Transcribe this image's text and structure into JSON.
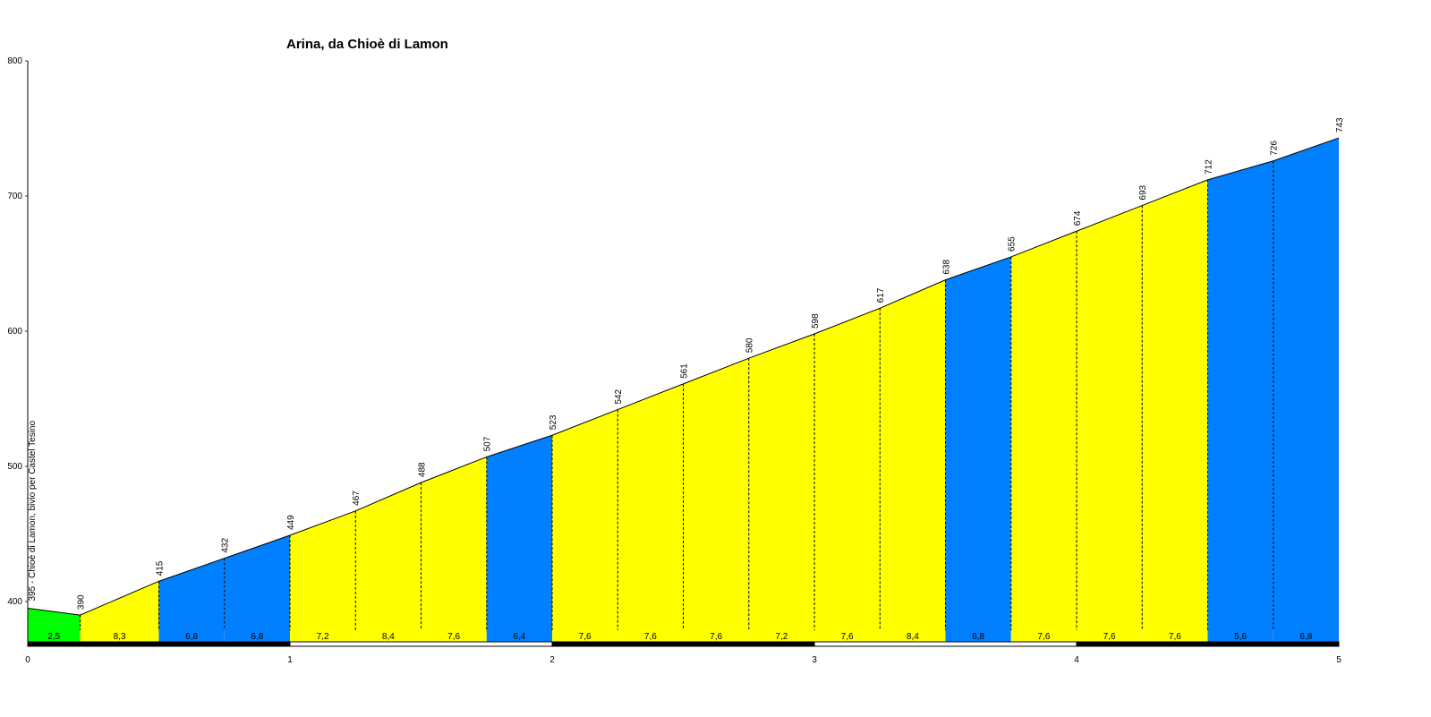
{
  "chart_data": {
    "type": "area",
    "title": "Arina, da Chioè di Lamon",
    "xlabel": "",
    "ylabel": "",
    "xlim": [
      0,
      5
    ],
    "ylim": [
      370,
      800
    ],
    "x_ticks": [
      "0",
      "1",
      "2",
      "3",
      "4",
      "5"
    ],
    "y_ticks": [
      "400",
      "500",
      "600",
      "700",
      "800"
    ],
    "start_label": "395 - Chioè di Lamon, bivio per Castel Tesino",
    "colors": {
      "green": "#00ff00",
      "yellow": "#ffff00",
      "blue": "#0080ff"
    },
    "points": [
      {
        "x": 0.0,
        "y": 395,
        "label": ""
      },
      {
        "x": 0.2,
        "y": 390,
        "label": "390"
      },
      {
        "x": 0.5,
        "y": 415,
        "label": "415"
      },
      {
        "x": 0.75,
        "y": 432,
        "label": "432"
      },
      {
        "x": 1.0,
        "y": 449,
        "label": "449"
      },
      {
        "x": 1.25,
        "y": 467,
        "label": "467"
      },
      {
        "x": 1.5,
        "y": 488,
        "label": "488"
      },
      {
        "x": 1.75,
        "y": 507,
        "label": "507"
      },
      {
        "x": 2.0,
        "y": 523,
        "label": "523"
      },
      {
        "x": 2.25,
        "y": 542,
        "label": "542"
      },
      {
        "x": 2.5,
        "y": 561,
        "label": "561"
      },
      {
        "x": 2.75,
        "y": 580,
        "label": "580"
      },
      {
        "x": 3.0,
        "y": 598,
        "label": "598"
      },
      {
        "x": 3.25,
        "y": 617,
        "label": "617"
      },
      {
        "x": 3.5,
        "y": 638,
        "label": "638"
      },
      {
        "x": 3.75,
        "y": 655,
        "label": "655"
      },
      {
        "x": 4.0,
        "y": 674,
        "label": "674"
      },
      {
        "x": 4.25,
        "y": 693,
        "label": "693"
      },
      {
        "x": 4.5,
        "y": 712,
        "label": "712"
      },
      {
        "x": 4.75,
        "y": 726,
        "label": "726"
      },
      {
        "x": 5.0,
        "y": 743,
        "label": "743"
      }
    ],
    "segments": [
      {
        "grade": "2,5",
        "color": "green"
      },
      {
        "grade": "8,3",
        "color": "yellow"
      },
      {
        "grade": "6,8",
        "color": "blue"
      },
      {
        "grade": "6,8",
        "color": "blue"
      },
      {
        "grade": "7,2",
        "color": "yellow"
      },
      {
        "grade": "8,4",
        "color": "yellow"
      },
      {
        "grade": "7,6",
        "color": "yellow"
      },
      {
        "grade": "6,4",
        "color": "blue"
      },
      {
        "grade": "7,6",
        "color": "yellow"
      },
      {
        "grade": "7,6",
        "color": "yellow"
      },
      {
        "grade": "7,6",
        "color": "yellow"
      },
      {
        "grade": "7,2",
        "color": "yellow"
      },
      {
        "grade": "7,6",
        "color": "yellow"
      },
      {
        "grade": "8,4",
        "color": "yellow"
      },
      {
        "grade": "6,8",
        "color": "blue"
      },
      {
        "grade": "7,6",
        "color": "yellow"
      },
      {
        "grade": "7,6",
        "color": "yellow"
      },
      {
        "grade": "7,6",
        "color": "yellow"
      },
      {
        "grade": "5,6",
        "color": "blue"
      },
      {
        "grade": "6,8",
        "color": "blue"
      }
    ]
  }
}
